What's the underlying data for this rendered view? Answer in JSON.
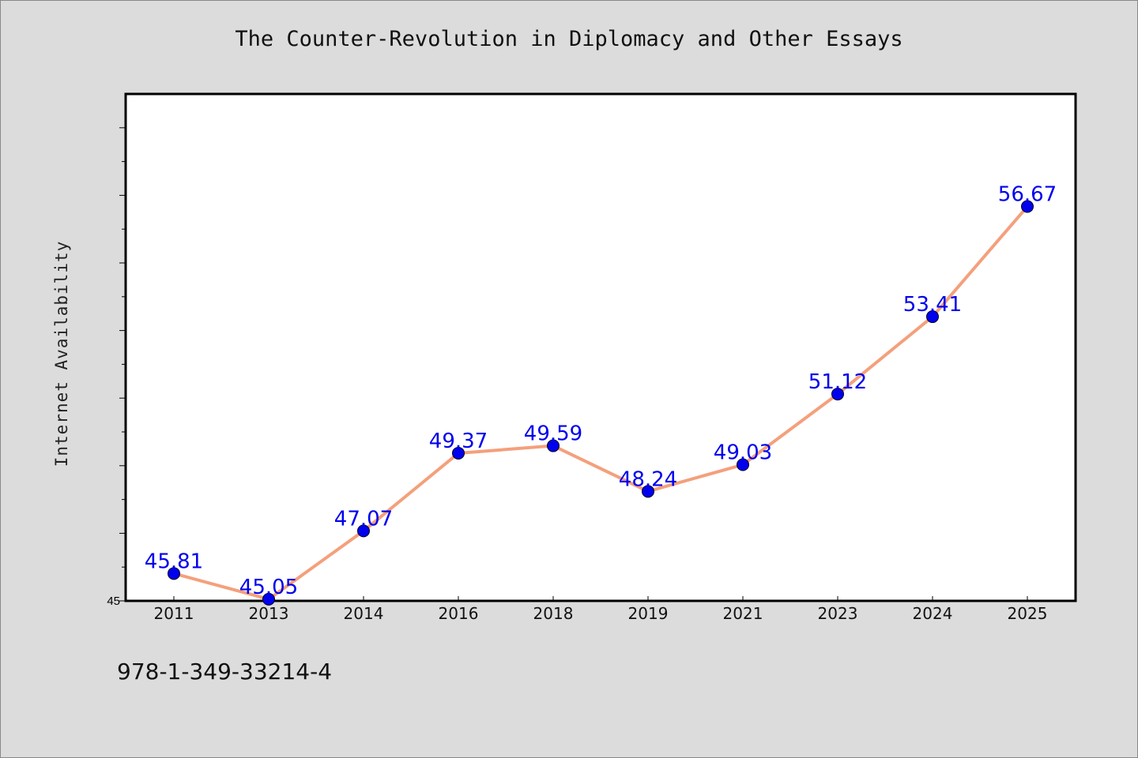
{
  "title": "The Counter-Revolution in Diplomacy and Other Essays",
  "footer": {
    "isbn": "978-1-349-33214-4"
  },
  "chart_data": {
    "type": "line",
    "title": "The Counter-Revolution in Diplomacy and Other Essays",
    "xlabel": "",
    "ylabel": "Internet Availability",
    "categories": [
      "2011",
      "2013",
      "2014",
      "2016",
      "2018",
      "2019",
      "2021",
      "2023",
      "2024",
      "2025"
    ],
    "series": [
      {
        "values": [
          45.81,
          45.05,
          47.07,
          49.37,
          49.59,
          48.24,
          49.03,
          51.12,
          53.41,
          56.67
        ],
        "data_labels": [
          "45.81",
          "45.05",
          "47.07",
          "49.37",
          "49.59",
          "48.24",
          "49.03",
          "51.12",
          "53.41",
          "56.67"
        ]
      }
    ],
    "ylim": [
      45,
      60
    ],
    "y_tick_labels": [
      "45"
    ],
    "grid": false,
    "legend": "none",
    "colors": {
      "line": "#f4a07c",
      "marker": "#0000ee",
      "data_label": "#0000ee",
      "plot_background": "#ffffff",
      "page_background": "#dcdcdc"
    }
  }
}
